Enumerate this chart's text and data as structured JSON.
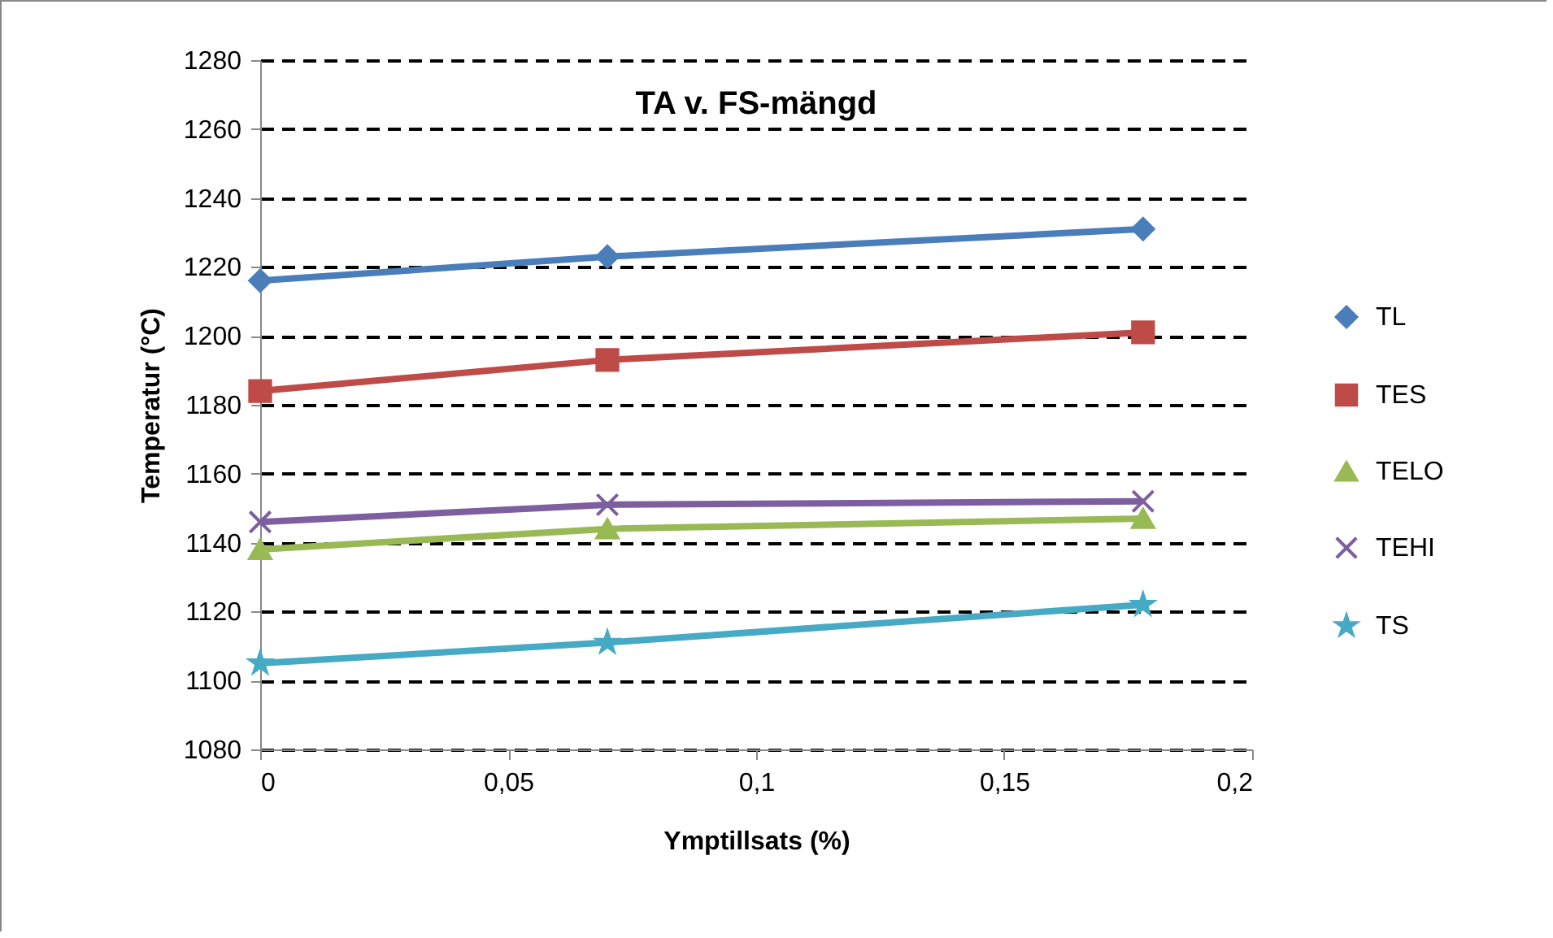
{
  "chart_data": {
    "type": "line",
    "title": "TA v. FS-mängd",
    "xlabel": "Ymptillsats (%)",
    "ylabel": "Temperatur (°C)",
    "x": [
      0,
      0.07,
      0.178
    ],
    "series": [
      {
        "name": "TL",
        "color": "#4a7ebb",
        "marker": "diamond",
        "values": [
          1216,
          1223,
          1231
        ]
      },
      {
        "name": "TES",
        "color": "#be4b48",
        "marker": "square",
        "values": [
          1184,
          1193,
          1201
        ]
      },
      {
        "name": "TELO",
        "color": "#98b954",
        "marker": "triangle",
        "values": [
          1138,
          1144,
          1147
        ]
      },
      {
        "name": "TEHI",
        "color": "#7d5fa0",
        "marker": "cross",
        "values": [
          1146,
          1151,
          1152
        ]
      },
      {
        "name": "TS",
        "color": "#46aac5",
        "marker": "star",
        "values": [
          1105,
          1111,
          1122
        ]
      }
    ],
    "xlim": [
      0,
      0.2
    ],
    "xticks": [
      0,
      {
        "value": 0.05,
        "label": "0,05"
      },
      {
        "value": 0.1,
        "label": "0,1"
      },
      {
        "value": 0.15,
        "label": "0,15"
      },
      {
        "value": 0.2,
        "label": "0,2"
      }
    ],
    "ylim": [
      1080,
      1280
    ],
    "yticks": [
      1080,
      1100,
      1120,
      1140,
      1160,
      1180,
      1200,
      1220,
      1240,
      1260,
      1280
    ],
    "grid": "y",
    "legend": "right",
    "line_style": "solid"
  }
}
